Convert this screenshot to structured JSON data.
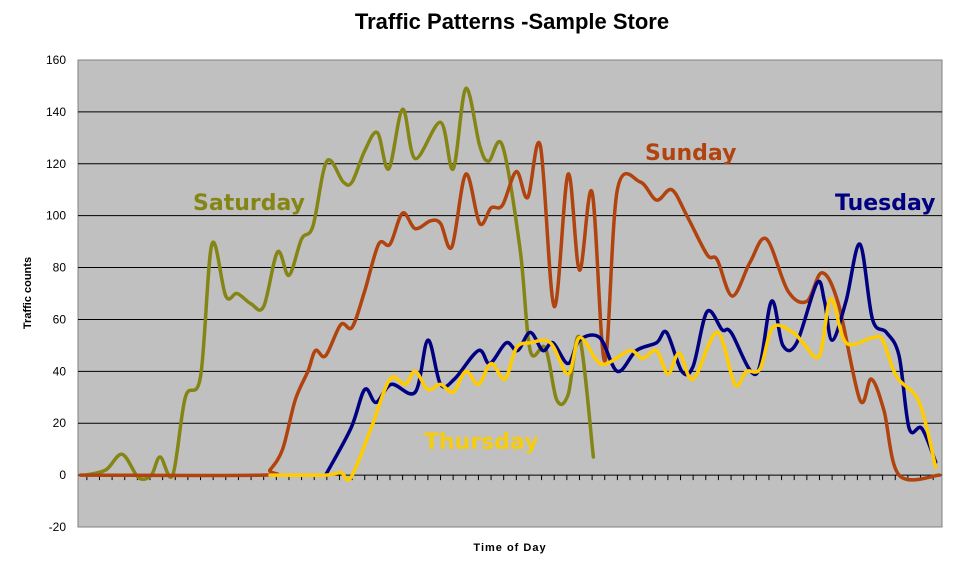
{
  "chart_data": {
    "type": "line",
    "title": "Traffic Patterns -Sample Store",
    "xlabel": "Time of Day",
    "ylabel": "Traffic counts",
    "ylim": [
      -20,
      160
    ],
    "yticks": [
      160,
      140,
      120,
      100,
      80,
      60,
      40,
      20,
      0,
      -20
    ],
    "xlim": [
      -0.2,
      68.2
    ],
    "x_tick_count": 68,
    "grid": true,
    "smoothed": true,
    "plot_background": "#c0c0c0",
    "legend": "none (inline series labels)",
    "series": [
      {
        "name": "Saturday",
        "color": "#858516",
        "points": [
          [
            0.4,
            0
          ],
          [
            2,
            2
          ],
          [
            3.3,
            8
          ],
          [
            4.6,
            -1
          ],
          [
            5.6,
            0
          ],
          [
            6.3,
            7
          ],
          [
            7.3,
            0
          ],
          [
            8.3,
            30
          ],
          [
            9.5,
            38
          ],
          [
            10.4,
            89
          ],
          [
            11.5,
            69
          ],
          [
            12.4,
            70
          ],
          [
            13.5,
            66
          ],
          [
            14.5,
            65
          ],
          [
            15.6,
            86
          ],
          [
            16.5,
            77
          ],
          [
            17.5,
            91
          ],
          [
            18.4,
            96
          ],
          [
            19.5,
            121
          ],
          [
            20.8,
            113
          ],
          [
            21.5,
            113
          ],
          [
            22.5,
            125
          ],
          [
            23.5,
            132
          ],
          [
            24.4,
            118
          ],
          [
            25.5,
            141
          ],
          [
            26.5,
            122
          ],
          [
            28.5,
            136
          ],
          [
            29.5,
            118
          ],
          [
            30.5,
            149
          ],
          [
            31.6,
            127
          ],
          [
            32.3,
            121
          ],
          [
            33.4,
            127
          ],
          [
            34.8,
            87
          ],
          [
            35.6,
            48
          ],
          [
            36.8,
            49
          ],
          [
            37.7,
            29
          ],
          [
            38.6,
            31
          ],
          [
            39.5,
            53
          ],
          [
            40.6,
            7
          ]
        ]
      },
      {
        "name": "Sunday",
        "color": "#b0430e",
        "points": [
          [
            0,
            0
          ],
          [
            14.4,
            0
          ],
          [
            15,
            2
          ],
          [
            16,
            10
          ],
          [
            17,
            29
          ],
          [
            18,
            40
          ],
          [
            18.6,
            48
          ],
          [
            19.4,
            46
          ],
          [
            20.6,
            58
          ],
          [
            21.5,
            57
          ],
          [
            22.5,
            71
          ],
          [
            23.6,
            89
          ],
          [
            24.5,
            89
          ],
          [
            25.5,
            101
          ],
          [
            26.5,
            95
          ],
          [
            27.7,
            98
          ],
          [
            28.5,
            97
          ],
          [
            29.4,
            88
          ],
          [
            30.5,
            116
          ],
          [
            31.6,
            97
          ],
          [
            32.5,
            103
          ],
          [
            33.4,
            104
          ],
          [
            34.5,
            117
          ],
          [
            35.4,
            107
          ],
          [
            36.4,
            127
          ],
          [
            37.5,
            65
          ],
          [
            38.6,
            116
          ],
          [
            39.5,
            79
          ],
          [
            40.5,
            109
          ],
          [
            41.5,
            44
          ],
          [
            42.5,
            110
          ],
          [
            44.3,
            113
          ],
          [
            45.6,
            106
          ],
          [
            46.8,
            110
          ],
          [
            48,
            100
          ],
          [
            49.6,
            85
          ],
          [
            50.4,
            83
          ],
          [
            51.6,
            69
          ],
          [
            53,
            82
          ],
          [
            54.3,
            91
          ],
          [
            56,
            71
          ],
          [
            57.5,
            67
          ],
          [
            58.7,
            78
          ],
          [
            60,
            66
          ],
          [
            61.7,
            29
          ],
          [
            62.6,
            37
          ],
          [
            63.6,
            25
          ],
          [
            64.8,
            0
          ],
          [
            68,
            0
          ]
        ]
      },
      {
        "name": "Tuesday",
        "color": "#000080",
        "points": [
          [
            19.4,
            0
          ],
          [
            21.4,
            18
          ],
          [
            22.5,
            33
          ],
          [
            23.4,
            28
          ],
          [
            24.6,
            35
          ],
          [
            26.5,
            32
          ],
          [
            27.5,
            52
          ],
          [
            28.5,
            35
          ],
          [
            29.6,
            37
          ],
          [
            31.5,
            48
          ],
          [
            32.4,
            43
          ],
          [
            33.7,
            51
          ],
          [
            34.6,
            48
          ],
          [
            35.6,
            55
          ],
          [
            36.6,
            48
          ],
          [
            37.4,
            51
          ],
          [
            38.6,
            43
          ],
          [
            39.5,
            52
          ],
          [
            41.1,
            53
          ],
          [
            42.5,
            40
          ],
          [
            44,
            48
          ],
          [
            45.6,
            51
          ],
          [
            46.4,
            55
          ],
          [
            47.6,
            40
          ],
          [
            48.5,
            42
          ],
          [
            49.6,
            63
          ],
          [
            50.8,
            56
          ],
          [
            51.5,
            55
          ],
          [
            53.5,
            39
          ],
          [
            54.7,
            67
          ],
          [
            55.6,
            50
          ],
          [
            56.7,
            51
          ],
          [
            58.3,
            74
          ],
          [
            58.9,
            67
          ],
          [
            59.5,
            52
          ],
          [
            60.6,
            67
          ],
          [
            61.7,
            89
          ],
          [
            62.7,
            60
          ],
          [
            63.8,
            55
          ],
          [
            64.8,
            46
          ],
          [
            65.6,
            18
          ],
          [
            66.6,
            18
          ],
          [
            67.7,
            5
          ]
        ]
      },
      {
        "name": "Thursday",
        "color": "#ffcc00",
        "points": [
          [
            15,
            0
          ],
          [
            19.4,
            0
          ],
          [
            20.6,
            1
          ],
          [
            21.4,
            -1
          ],
          [
            23,
            18
          ],
          [
            24.5,
            37
          ],
          [
            25.7,
            35
          ],
          [
            26.5,
            40
          ],
          [
            27.5,
            33
          ],
          [
            28.5,
            35
          ],
          [
            29.5,
            32
          ],
          [
            30.5,
            40
          ],
          [
            31.5,
            35
          ],
          [
            32.5,
            43
          ],
          [
            33.6,
            37
          ],
          [
            34.5,
            49
          ],
          [
            35.6,
            51
          ],
          [
            37.2,
            51
          ],
          [
            38.6,
            39
          ],
          [
            39.5,
            53
          ],
          [
            40.9,
            44
          ],
          [
            41.7,
            43
          ],
          [
            43.5,
            48
          ],
          [
            44.5,
            45
          ],
          [
            45.6,
            48
          ],
          [
            46.5,
            39
          ],
          [
            47.4,
            47
          ],
          [
            48.5,
            37
          ],
          [
            50.4,
            55
          ],
          [
            51.8,
            35
          ],
          [
            52.7,
            40
          ],
          [
            53.8,
            41
          ],
          [
            54.8,
            57
          ],
          [
            56.4,
            55
          ],
          [
            57.2,
            51
          ],
          [
            58.5,
            46
          ],
          [
            59.4,
            68
          ],
          [
            60.6,
            51
          ],
          [
            62.7,
            53
          ],
          [
            63.5,
            52
          ],
          [
            64.6,
            38
          ],
          [
            66.4,
            28
          ],
          [
            67.7,
            3
          ]
        ]
      }
    ]
  }
}
